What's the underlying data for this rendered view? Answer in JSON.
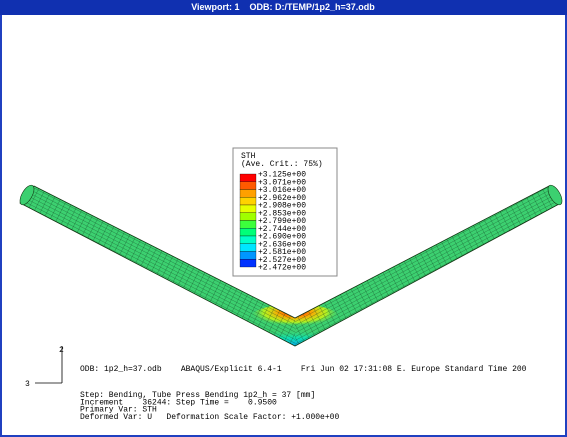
{
  "window": {
    "title": "Viewport: 1    ODB: D:/TEMP/1p2_h=37.odb"
  },
  "legend": {
    "variable": "STH",
    "criterion": "(Ave. Crit.: 75%)",
    "values": [
      "+3.125e+00",
      "+3.071e+00",
      "+3.016e+00",
      "+2.962e+00",
      "+2.908e+00",
      "+2.853e+00",
      "+2.799e+00",
      "+2.744e+00",
      "+2.690e+00",
      "+2.636e+00",
      "+2.581e+00",
      "+2.527e+00",
      "+2.472e+00"
    ],
    "colors": [
      "#ff0000",
      "#ff5a00",
      "#ffa000",
      "#ffd200",
      "#e6ff00",
      "#a0ff00",
      "#3cff3c",
      "#00ff78",
      "#00ffc8",
      "#00e6ff",
      "#0096ff",
      "#0032ff"
    ]
  },
  "triad": {
    "axis_up": "2",
    "axis_left": "3"
  },
  "info": {
    "header": "ODB: 1p2_h=37.odb    ABAQUS/Explicit 6.4-1    Fri Jun 02 17:31:08 E. Europe Standard Time 200",
    "lines": [
      "Step: Bending, Tube Press Bending 1p2_h = 37 [mm]",
      "Increment    36244: Step Time =    0.9500",
      "Primary Var: STH",
      "Deformed Var: U   Deformation Scale Factor: +1.000e+00"
    ]
  }
}
